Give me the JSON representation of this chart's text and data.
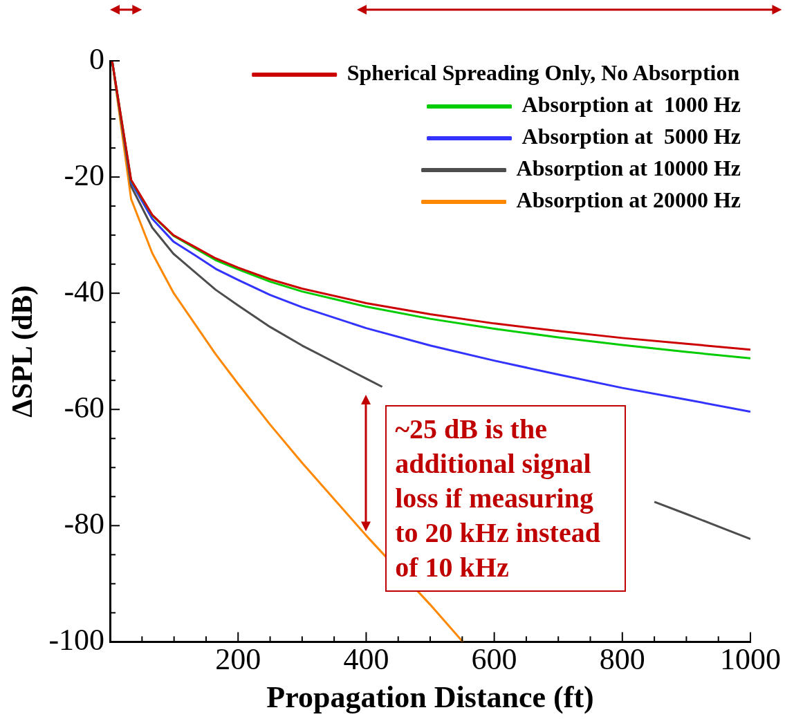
{
  "chart_data": {
    "type": "line",
    "xlabel": "Propagation Distance (ft)",
    "ylabel": "ΔSPL (dB)",
    "x": [
      3.3,
      33,
      66,
      99,
      132,
      165,
      200,
      250,
      300,
      400,
      500,
      600,
      700,
      800,
      900,
      1000
    ],
    "series": [
      {
        "name": "Spherical Spreading Only, No Absorption",
        "color": "#cc0000",
        "values": [
          0,
          -20.5,
          -26.5,
          -30,
          -32,
          -34,
          -35.6,
          -37.6,
          -39.2,
          -41.7,
          -43.6,
          -45.2,
          -46.5,
          -47.7,
          -48.7,
          -49.7
        ]
      },
      {
        "name": "Absorption at  1000 Hz",
        "color": "#00cc00",
        "values": [
          0,
          -20.6,
          -26.6,
          -30.1,
          -32.2,
          -34.3,
          -35.9,
          -38,
          -39.7,
          -42.3,
          -44.4,
          -46.1,
          -47.6,
          -48.9,
          -50.1,
          -51.2
        ]
      },
      {
        "name": "Absorption at  5000 Hz",
        "color": "#3333ff",
        "values": [
          0,
          -20.9,
          -27.2,
          -31.1,
          -33.4,
          -35.8,
          -37.7,
          -40.3,
          -42.4,
          -46,
          -49,
          -51.6,
          -54,
          -56.3,
          -58.3,
          -60.4
        ]
      },
      {
        "name": "Absorption at 10000 Hz",
        "color": "#4d4d4d",
        "x": [
          3.3,
          33,
          66,
          99,
          132,
          165,
          200,
          250,
          300,
          400,
          425,
          500,
          600,
          700,
          800,
          850,
          900,
          1000
        ],
        "values": [
          0,
          -21.6,
          -28.7,
          -33.2,
          -36.3,
          -39.4,
          -42.1,
          -45.8,
          -49,
          -54.7,
          -56.1,
          null,
          null,
          null,
          null,
          -75.9,
          -78,
          -82.3
        ]
      },
      {
        "name": "Absorption at 20000 Hz",
        "color": "#ff8800",
        "x": [
          3.3,
          33,
          66,
          99,
          132,
          165,
          200,
          250,
          300,
          400,
          500,
          551
        ],
        "values": [
          0,
          -23.8,
          -33.1,
          -39.9,
          -45.2,
          -50.5,
          -55.6,
          -62.6,
          -69.2,
          -81.7,
          -93.6,
          -100
        ]
      }
    ],
    "xlim": [
      0,
      1000
    ],
    "xticks": [
      {
        "value": 50,
        "label": null
      },
      {
        "value": 100,
        "label": null
      },
      {
        "value": 150,
        "label": null
      },
      200,
      {
        "value": 250,
        "label": null
      },
      {
        "value": 300,
        "label": null
      },
      {
        "value": 350,
        "label": null
      },
      400,
      {
        "value": 450,
        "label": null
      },
      {
        "value": 500,
        "label": null
      },
      {
        "value": 550,
        "label": null
      },
      600,
      {
        "value": 650,
        "label": null
      },
      {
        "value": 700,
        "label": null
      },
      {
        "value": 750,
        "label": null
      },
      800,
      {
        "value": 850,
        "label": null
      },
      {
        "value": 900,
        "label": null
      },
      {
        "value": 950,
        "label": null
      },
      1000
    ],
    "ylim": [
      -100,
      0
    ],
    "yticks": [
      -100,
      {
        "value": -95,
        "label": null
      },
      {
        "value": -90,
        "label": null
      },
      {
        "value": -85,
        "label": null
      },
      -80,
      {
        "value": -75,
        "label": null
      },
      {
        "value": -70,
        "label": null
      },
      {
        "value": -65,
        "label": null
      },
      -60,
      {
        "value": -55,
        "label": null
      },
      {
        "value": -50,
        "label": null
      },
      {
        "value": -45,
        "label": null
      },
      -40,
      {
        "value": -35,
        "label": null
      },
      {
        "value": -30,
        "label": null
      },
      {
        "value": -25,
        "label": null
      },
      -20,
      {
        "value": -15,
        "label": null
      },
      {
        "value": -10,
        "label": null
      },
      {
        "value": -5,
        "label": null
      },
      0
    ],
    "annotations": [
      "~25 dB is the additional signal loss if measuring to 20 kHz instead of 10 kHz"
    ],
    "legend": "top right",
    "grid": false,
    "marker": "none",
    "line_style": "solid"
  }
}
